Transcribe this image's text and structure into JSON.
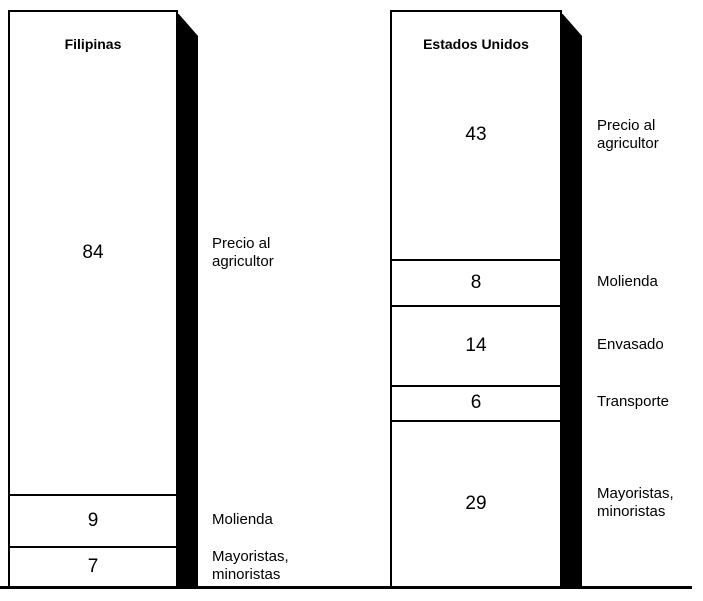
{
  "chart_data": {
    "type": "bar",
    "stacked": true,
    "categories": [
      "Filipinas",
      "Estados Unidos"
    ],
    "columns": [
      {
        "name": "Filipinas",
        "segments": [
          {
            "value": 84,
            "label": "Precio al agricultor"
          },
          {
            "value": 9,
            "label": "Molienda"
          },
          {
            "value": 7,
            "label": "Mayoristas, minoristas"
          }
        ]
      },
      {
        "name": "Estados Unidos",
        "segments": [
          {
            "value": 43,
            "label": "Precio al agricultor"
          },
          {
            "value": 8,
            "label": "Molienda"
          },
          {
            "value": 14,
            "label": "Envasado"
          },
          {
            "value": 6,
            "label": "Transporte"
          },
          {
            "value": 29,
            "label": "Mayoristas, minoristas"
          }
        ]
      }
    ],
    "title": "",
    "xlabel": "",
    "ylabel": "",
    "colors": {
      "fill": "#ffffff",
      "border": "#000000",
      "shadow": "#000000"
    }
  }
}
